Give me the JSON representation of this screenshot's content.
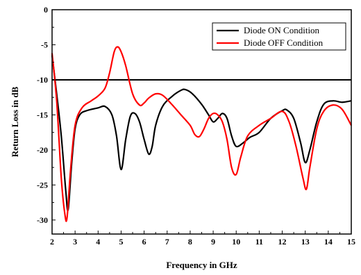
{
  "chart_data": {
    "type": "line",
    "title": "",
    "xlabel": "Frequency in GHz",
    "ylabel": "Return Loss in dB",
    "xlim": [
      2,
      15
    ],
    "ylim": [
      -32,
      0
    ],
    "xticks": [
      2,
      3,
      4,
      5,
      6,
      7,
      8,
      9,
      10,
      11,
      12,
      13,
      14,
      15
    ],
    "yticks": [
      0,
      -5,
      -10,
      -15,
      -20,
      -25,
      -30
    ],
    "xtick_labels": [
      "2",
      "3",
      "4",
      "5",
      "6",
      "7",
      "8",
      "9",
      "10",
      "11",
      "12",
      "13",
      "14",
      "15"
    ],
    "ytick_labels": [
      "0",
      "-5",
      "-10",
      "-15",
      "-20",
      "-25",
      "-30"
    ],
    "grid": false,
    "legend_position": "top-right",
    "reference_line": {
      "y": -10,
      "color": "#000000"
    },
    "series": [
      {
        "name": "Diode ON Condition",
        "color": "#000000",
        "x": [
          2.0,
          2.2,
          2.4,
          2.6,
          2.7,
          2.85,
          3.0,
          3.2,
          3.5,
          4.0,
          4.3,
          4.6,
          4.8,
          5.0,
          5.2,
          5.4,
          5.6,
          5.8,
          6.0,
          6.2,
          6.35,
          6.5,
          6.8,
          7.2,
          7.6,
          7.8,
          8.1,
          8.5,
          8.8,
          9.0,
          9.2,
          9.4,
          9.6,
          9.8,
          10.0,
          10.3,
          10.6,
          11.0,
          11.5,
          12.0,
          12.2,
          12.5,
          12.8,
          13.0,
          13.2,
          13.5,
          13.8,
          14.2,
          14.6,
          15.0
        ],
        "y": [
          -6.5,
          -12.0,
          -18.0,
          -26.0,
          -28.5,
          -22.0,
          -17.0,
          -15.0,
          -14.4,
          -14.0,
          -13.8,
          -15.0,
          -18.0,
          -22.8,
          -18.5,
          -15.2,
          -14.8,
          -16.0,
          -18.5,
          -20.6,
          -19.5,
          -16.5,
          -13.8,
          -12.4,
          -11.5,
          -11.4,
          -12.0,
          -13.5,
          -15.0,
          -16.0,
          -15.5,
          -14.8,
          -15.5,
          -18.0,
          -19.5,
          -19.0,
          -18.2,
          -17.5,
          -15.5,
          -14.4,
          -14.3,
          -15.5,
          -19.0,
          -21.8,
          -20.0,
          -16.0,
          -13.5,
          -13.0,
          -13.2,
          -13.0
        ]
      },
      {
        "name": "Diode OFF Condition",
        "color": "#ff0000",
        "x": [
          2.0,
          2.2,
          2.4,
          2.55,
          2.65,
          2.8,
          3.0,
          3.3,
          3.7,
          4.0,
          4.3,
          4.5,
          4.7,
          4.85,
          5.0,
          5.2,
          5.5,
          5.8,
          6.0,
          6.2,
          6.5,
          6.8,
          7.2,
          7.6,
          8.0,
          8.2,
          8.4,
          8.6,
          8.8,
          9.0,
          9.2,
          9.4,
          9.6,
          9.8,
          10.0,
          10.2,
          10.5,
          11.0,
          11.5,
          12.0,
          12.3,
          12.6,
          12.9,
          13.05,
          13.2,
          13.5,
          13.8,
          14.2,
          14.6,
          15.0
        ],
        "y": [
          -6.2,
          -13.0,
          -24.0,
          -29.0,
          -29.7,
          -23.0,
          -16.5,
          -14.0,
          -13.0,
          -12.3,
          -11.2,
          -9.0,
          -6.0,
          -5.3,
          -6.0,
          -8.0,
          -12.0,
          -13.6,
          -13.3,
          -12.6,
          -12.0,
          -12.2,
          -13.5,
          -15.0,
          -16.5,
          -17.8,
          -18.1,
          -17.0,
          -15.5,
          -14.8,
          -15.0,
          -16.0,
          -18.5,
          -22.5,
          -23.5,
          -21.0,
          -18.0,
          -16.5,
          -15.5,
          -14.5,
          -16.0,
          -19.5,
          -24.0,
          -25.6,
          -22.5,
          -17.0,
          -14.5,
          -13.6,
          -14.2,
          -16.5
        ]
      }
    ]
  }
}
